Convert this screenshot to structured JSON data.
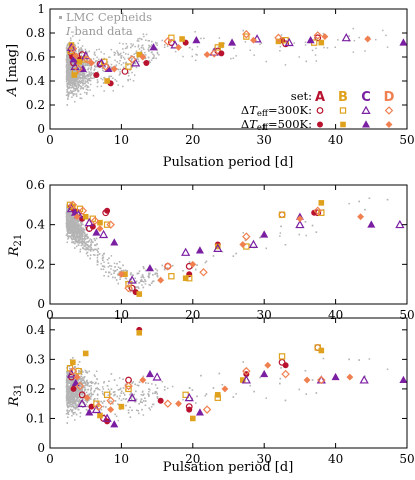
{
  "colors": {
    "A": "#b8122f",
    "B": "#e0a21e",
    "C": "#7b1fa2",
    "D": "#f08050",
    "lmc": "#b4b4b4"
  },
  "legend": {
    "lmc_title": "LMC Cepheids",
    "lmc_sub": "I-band data",
    "set_label": "set:",
    "sets": [
      "A",
      "B",
      "C",
      "D"
    ],
    "row300": "ΔT_eff=300K:",
    "row500": "ΔT_eff=500K:"
  },
  "chart_data": [
    {
      "type": "scatter",
      "xlabel": "Pulsation period [d]",
      "ylabel": "A [mag]",
      "xlim": [
        0,
        50
      ],
      "ylim": [
        0,
        1
      ],
      "xticks": [
        0,
        10,
        20,
        30,
        40,
        50
      ],
      "yticks": [
        0,
        0.2,
        0.4,
        0.6,
        0.8,
        1
      ],
      "tick_labels_x": [
        "0",
        "10",
        "20",
        "30",
        "40",
        "50"
      ],
      "tick_labels_y": [
        "0",
        "0.2",
        "0.4",
        "0.6",
        "0.8",
        "1"
      ],
      "series": [
        {
          "set": "A",
          "teff": 300,
          "points": [
            [
              3.0,
              0.63
            ],
            [
              3.3,
              0.55
            ],
            [
              4.5,
              0.62
            ],
            [
              7.0,
              0.54
            ],
            [
              10.5,
              0.48
            ],
            [
              17.0,
              0.72
            ],
            [
              23.5,
              0.65
            ],
            [
              33.0,
              0.71
            ],
            [
              37.5,
              0.76
            ]
          ]
        },
        {
          "set": "A",
          "teff": 500,
          "points": [
            [
              3.1,
              0.6
            ],
            [
              4.2,
              0.58
            ],
            [
              6.5,
              0.45
            ],
            [
              8.5,
              0.38
            ],
            [
              13.5,
              0.55
            ],
            [
              19.0,
              0.72
            ],
            [
              24.0,
              0.63
            ],
            [
              32.5,
              0.74
            ]
          ]
        },
        {
          "set": "B",
          "teff": 300,
          "points": [
            [
              2.9,
              0.65
            ],
            [
              3.5,
              0.48
            ],
            [
              4.8,
              0.58
            ],
            [
              7.6,
              0.56
            ],
            [
              11.0,
              0.52
            ],
            [
              17.0,
              0.76
            ],
            [
              23.5,
              0.68
            ],
            [
              27.5,
              0.77
            ],
            [
              33.0,
              0.74
            ],
            [
              37.0,
              0.72
            ]
          ]
        },
        {
          "set": "B",
          "teff": 500,
          "points": [
            [
              3.0,
              0.7
            ],
            [
              3.4,
              0.45
            ],
            [
              4.1,
              0.56
            ],
            [
              8.0,
              0.4
            ],
            [
              12.5,
              0.62
            ],
            [
              18.5,
              0.75
            ],
            [
              24.0,
              0.7
            ],
            [
              32.0,
              0.73
            ],
            [
              38.0,
              0.72
            ]
          ]
        },
        {
          "set": "C",
          "teff": 300,
          "points": [
            [
              3.0,
              0.68
            ],
            [
              3.5,
              0.52
            ],
            [
              5.0,
              0.61
            ],
            [
              7.2,
              0.55
            ],
            [
              12.0,
              0.55
            ],
            [
              17.5,
              0.7
            ],
            [
              23.0,
              0.64
            ],
            [
              29.0,
              0.75
            ],
            [
              33.5,
              0.72
            ],
            [
              41.5,
              0.76
            ]
          ]
        },
        {
          "set": "C",
          "teff": 500,
          "points": [
            [
              3.3,
              0.58
            ],
            [
              4.6,
              0.5
            ],
            [
              8.2,
              0.5
            ],
            [
              14.5,
              0.68
            ],
            [
              20.5,
              0.74
            ],
            [
              25.5,
              0.72
            ],
            [
              36.5,
              0.74
            ],
            [
              49.5,
              0.72
            ]
          ]
        },
        {
          "set": "D",
          "teff": 300,
          "points": [
            [
              3.2,
              0.67
            ],
            [
              4.0,
              0.5
            ],
            [
              5.2,
              0.58
            ],
            [
              7.8,
              0.52
            ],
            [
              11.5,
              0.58
            ],
            [
              16.5,
              0.73
            ],
            [
              23.0,
              0.63
            ],
            [
              27.5,
              0.79
            ],
            [
              32.0,
              0.76
            ],
            [
              37.5,
              0.78
            ]
          ]
        },
        {
          "set": "D",
          "teff": 500,
          "points": [
            [
              3.6,
              0.61
            ],
            [
              5.8,
              0.55
            ],
            [
              9.0,
              0.5
            ],
            [
              13.0,
              0.6
            ],
            [
              18.0,
              0.68
            ],
            [
              22.0,
              0.62
            ],
            [
              28.5,
              0.74
            ],
            [
              38.5,
              0.77
            ],
            [
              44.5,
              0.75
            ]
          ]
        }
      ]
    },
    {
      "type": "scatter",
      "xlabel": "",
      "ylabel": "R21",
      "xlim": [
        0,
        50
      ],
      "ylim": [
        0,
        0.6
      ],
      "xticks": [
        0,
        10,
        20,
        30,
        40,
        50
      ],
      "yticks": [
        0,
        0.2,
        0.4,
        0.6
      ],
      "tick_labels_x": [
        "0",
        "10",
        "20",
        "30",
        "40",
        "50"
      ],
      "tick_labels_y": [
        "0",
        "0.2",
        "0.4",
        "0.6"
      ],
      "series": [
        {
          "set": "A",
          "teff": 300,
          "points": [
            [
              3.0,
              0.49
            ],
            [
              4.0,
              0.46
            ],
            [
              5.5,
              0.38
            ],
            [
              7.8,
              0.46
            ],
            [
              11.5,
              0.08
            ],
            [
              16.5,
              0.19
            ],
            [
              19.5,
              0.19
            ],
            [
              32.5,
              0.45
            ],
            [
              37.5,
              0.46
            ]
          ]
        },
        {
          "set": "A",
          "teff": 500,
          "points": [
            [
              3.4,
              0.47
            ],
            [
              4.5,
              0.43
            ],
            [
              6.0,
              0.39
            ],
            [
              8.0,
              0.47
            ],
            [
              12.0,
              0.06
            ],
            [
              19.5,
              0.15
            ],
            [
              23.5,
              0.3
            ],
            [
              37.0,
              0.46
            ]
          ]
        },
        {
          "set": "B",
          "teff": 300,
          "points": [
            [
              2.8,
              0.5
            ],
            [
              4.2,
              0.48
            ],
            [
              6.0,
              0.43
            ],
            [
              8.0,
              0.4
            ],
            [
              11.0,
              0.1
            ],
            [
              17.0,
              0.14
            ],
            [
              19.5,
              0.13
            ],
            [
              27.5,
              0.29
            ],
            [
              32.5,
              0.45
            ],
            [
              38.0,
              0.46
            ]
          ]
        },
        {
          "set": "B",
          "teff": 500,
          "points": [
            [
              3.2,
              0.49
            ],
            [
              5.0,
              0.44
            ],
            [
              7.0,
              0.41
            ],
            [
              10.5,
              0.15
            ],
            [
              12.5,
              0.05
            ],
            [
              19.0,
              0.13
            ],
            [
              23.5,
              0.29
            ],
            [
              38.0,
              0.51
            ]
          ]
        },
        {
          "set": "C",
          "teff": 300,
          "points": [
            [
              3.0,
              0.48
            ],
            [
              4.0,
              0.45
            ],
            [
              5.5,
              0.41
            ],
            [
              7.5,
              0.35
            ],
            [
              11.5,
              0.12
            ],
            [
              19.0,
              0.26
            ],
            [
              23.5,
              0.28
            ],
            [
              28.5,
              0.3
            ],
            [
              35.0,
              0.4
            ],
            [
              49.0,
              0.4
            ]
          ]
        },
        {
          "set": "C",
          "teff": 500,
          "points": [
            [
              3.5,
              0.46
            ],
            [
              6.5,
              0.36
            ],
            [
              9.0,
              0.31
            ],
            [
              14.0,
              0.18
            ],
            [
              21.0,
              0.27
            ],
            [
              30.0,
              0.35
            ],
            [
              35.0,
              0.44
            ],
            [
              45.0,
              0.4
            ]
          ]
        },
        {
          "set": "D",
          "teff": 300,
          "points": [
            [
              3.2,
              0.5
            ],
            [
              4.6,
              0.47
            ],
            [
              6.3,
              0.42
            ],
            [
              8.5,
              0.4
            ],
            [
              11.0,
              0.08
            ],
            [
              16.5,
              0.19
            ],
            [
              21.5,
              0.16
            ],
            [
              27.5,
              0.34
            ],
            [
              37.5,
              0.47
            ]
          ]
        },
        {
          "set": "D",
          "teff": 500,
          "points": [
            [
              3.8,
              0.44
            ],
            [
              7.0,
              0.38
            ],
            [
              10.0,
              0.15
            ],
            [
              15.5,
              0.12
            ],
            [
              20.0,
              0.2
            ],
            [
              27.0,
              0.3
            ],
            [
              35.0,
              0.43
            ],
            [
              43.5,
              0.44
            ]
          ]
        }
      ]
    },
    {
      "type": "scatter",
      "xlabel": "Pulsation period [d]",
      "ylabel": "R31",
      "xlim": [
        0,
        50
      ],
      "ylim": [
        0,
        0.44
      ],
      "xticks": [
        0,
        10,
        20,
        30,
        40,
        50
      ],
      "yticks": [
        0,
        0.1,
        0.2,
        0.3,
        0.4
      ],
      "tick_labels_x": [
        "0",
        "10",
        "20",
        "30",
        "40",
        "50"
      ],
      "tick_labels_y": [
        "0",
        "0.1",
        "0.2",
        "0.3",
        "0.4"
      ],
      "series": [
        {
          "set": "A",
          "teff": 300,
          "points": [
            [
              3.0,
              0.24
            ],
            [
              4.5,
              0.18
            ],
            [
              7.5,
              0.1
            ],
            [
              11.0,
              0.23
            ],
            [
              19.5,
              0.14
            ],
            [
              32.5,
              0.29
            ],
            [
              37.5,
              0.34
            ]
          ]
        },
        {
          "set": "A",
          "teff": 500,
          "points": [
            [
              3.3,
              0.2
            ],
            [
              5.8,
              0.14
            ],
            [
              8.0,
              0.09
            ],
            [
              12.5,
              0.4
            ],
            [
              15.5,
              0.16
            ],
            [
              19.5,
              0.13
            ],
            [
              27.5,
              0.25
            ],
            [
              33.0,
              0.28
            ]
          ]
        },
        {
          "set": "B",
          "teff": 300,
          "points": [
            [
              2.8,
              0.27
            ],
            [
              4.0,
              0.26
            ],
            [
              6.5,
              0.15
            ],
            [
              8.0,
              0.18
            ],
            [
              11.0,
              0.2
            ],
            [
              19.0,
              0.18
            ],
            [
              23.5,
              0.17
            ],
            [
              32.5,
              0.31
            ],
            [
              37.5,
              0.34
            ]
          ]
        },
        {
          "set": "B",
          "teff": 500,
          "points": [
            [
              3.2,
              0.29
            ],
            [
              5.0,
              0.32
            ],
            [
              7.0,
              0.11
            ],
            [
              10.0,
              0.14
            ],
            [
              12.5,
              0.39
            ],
            [
              20.0,
              0.1
            ],
            [
              23.5,
              0.18
            ],
            [
              27.0,
              0.23
            ],
            [
              38.0,
              0.33
            ]
          ]
        },
        {
          "set": "C",
          "teff": 300,
          "points": [
            [
              3.0,
              0.25
            ],
            [
              4.5,
              0.15
            ],
            [
              6.5,
              0.13
            ],
            [
              8.0,
              0.1
            ],
            [
              11.5,
              0.17
            ],
            [
              15.0,
              0.24
            ],
            [
              19.5,
              0.17
            ],
            [
              27.5,
              0.23
            ],
            [
              38.0,
              0.23
            ],
            [
              44.0,
              0.23
            ]
          ]
        },
        {
          "set": "C",
          "teff": 500,
          "points": [
            [
              3.6,
              0.22
            ],
            [
              5.5,
              0.12
            ],
            [
              9.0,
              0.08
            ],
            [
              14.0,
              0.25
            ],
            [
              21.0,
              0.12
            ],
            [
              30.0,
              0.25
            ],
            [
              40.0,
              0.24
            ],
            [
              49.5,
              0.23
            ]
          ]
        },
        {
          "set": "D",
          "teff": 300,
          "points": [
            [
              3.2,
              0.26
            ],
            [
              4.2,
              0.21
            ],
            [
              6.8,
              0.14
            ],
            [
              8.5,
              0.16
            ],
            [
              11.0,
              0.21
            ],
            [
              16.5,
              0.15
            ],
            [
              22.0,
              0.13
            ],
            [
              27.5,
              0.26
            ],
            [
              33.0,
              0.25
            ],
            [
              38.0,
              0.23
            ]
          ]
        },
        {
          "set": "D",
          "teff": 500,
          "points": [
            [
              3.8,
              0.24
            ],
            [
              5.2,
              0.17
            ],
            [
              8.5,
              0.13
            ],
            [
              13.0,
              0.23
            ],
            [
              18.0,
              0.15
            ],
            [
              24.5,
              0.2
            ],
            [
              30.5,
              0.28
            ],
            [
              36.0,
              0.23
            ],
            [
              42.0,
              0.24
            ]
          ]
        }
      ]
    }
  ]
}
